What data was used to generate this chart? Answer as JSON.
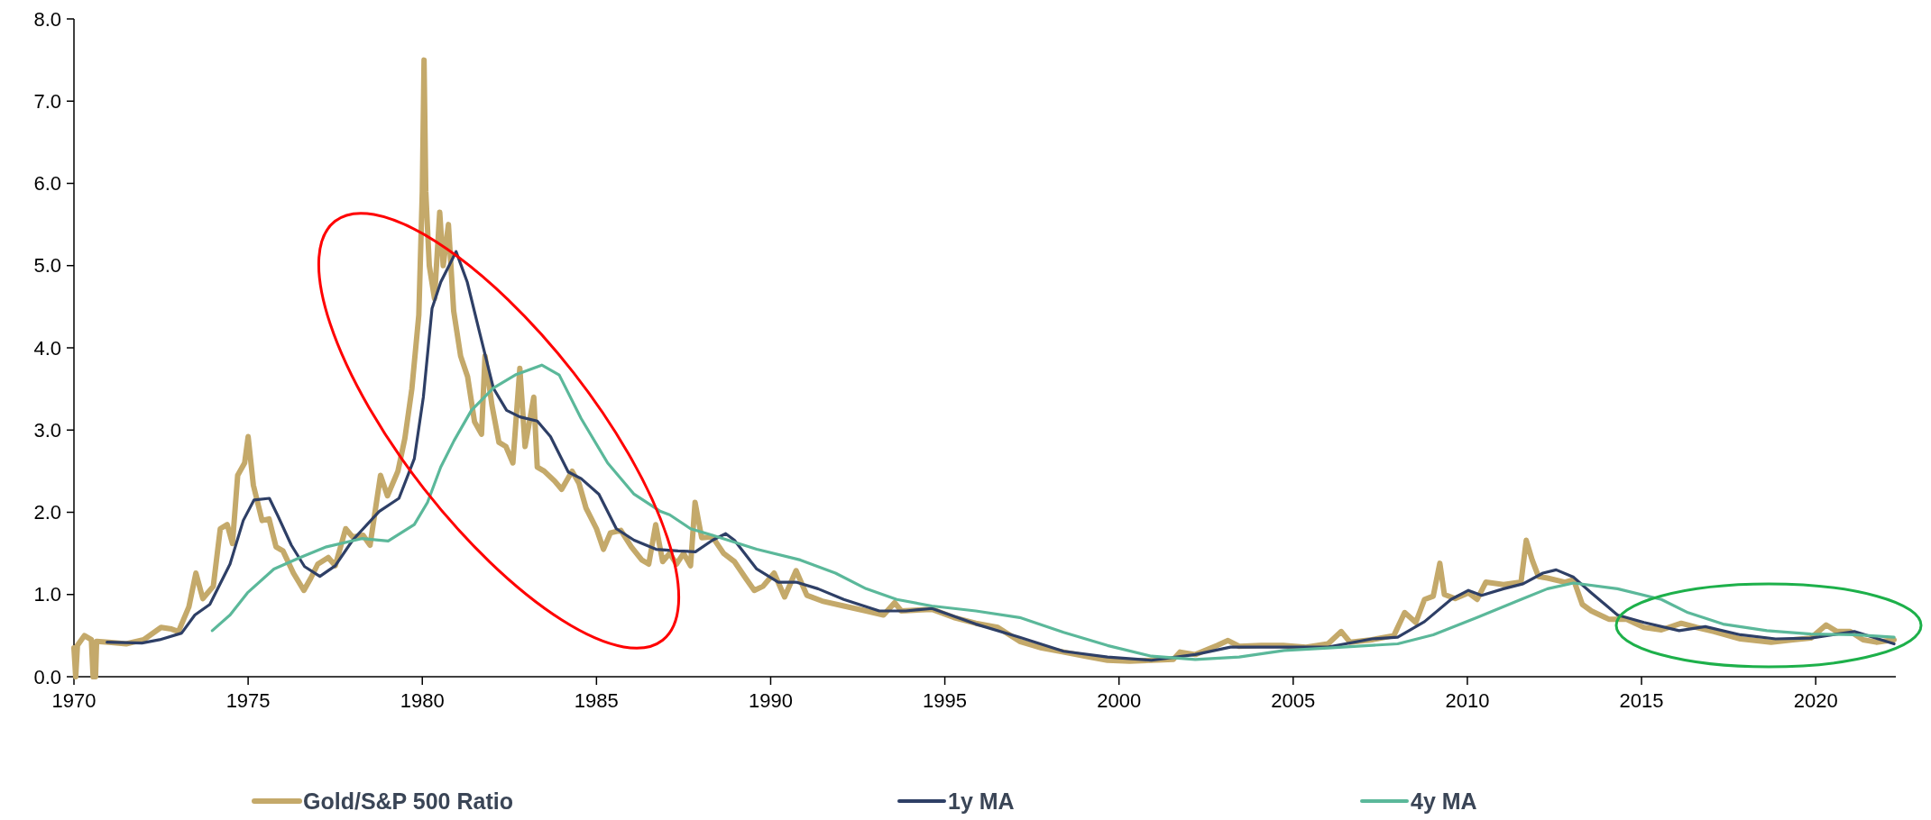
{
  "chart_data": {
    "type": "line",
    "xlim": [
      1970,
      2022.3
    ],
    "xticks": [
      1970,
      1975,
      1980,
      1985,
      1990,
      1995,
      2000,
      2005,
      2010,
      2015,
      2020
    ],
    "ylim": [
      0,
      8
    ],
    "yticks": [
      {
        "value": 0,
        "label": "0.0"
      },
      {
        "value": 1,
        "label": "1.0"
      },
      {
        "value": 2,
        "label": "2.0"
      },
      {
        "value": 3,
        "label": "3.0"
      },
      {
        "value": 4,
        "label": "4.0"
      },
      {
        "value": 5,
        "label": "5.0"
      },
      {
        "value": 6,
        "label": "6.0"
      },
      {
        "value": 7,
        "label": "7.0"
      },
      {
        "value": 8,
        "label": "8.0"
      }
    ],
    "legend": "bottom",
    "series": [
      {
        "name": "Gold/S&P 500 Ratio",
        "color": "#c4a96a",
        "x": [
          1970.0,
          1970.05,
          1970.1,
          1970.3,
          1970.5,
          1970.55,
          1970.62,
          1970.65,
          1971.0,
          1971.5,
          1972.0,
          1972.5,
          1972.8,
          1973.0,
          1973.3,
          1973.5,
          1973.7,
          1974.0,
          1974.2,
          1974.4,
          1974.55,
          1974.7,
          1974.9,
          1975.0,
          1975.15,
          1975.4,
          1975.6,
          1975.8,
          1976.0,
          1976.3,
          1976.6,
          1976.8,
          1977.0,
          1977.3,
          1977.5,
          1977.8,
          1978.0,
          1978.3,
          1978.5,
          1978.8,
          1979.0,
          1979.3,
          1979.5,
          1979.7,
          1979.9,
          1980.0,
          1980.05,
          1980.1,
          1980.2,
          1980.35,
          1980.5,
          1980.6,
          1980.75,
          1980.9,
          1981.1,
          1981.3,
          1981.5,
          1981.7,
          1981.8,
          1982.0,
          1982.2,
          1982.4,
          1982.6,
          1982.8,
          1982.95,
          1983.2,
          1983.3,
          1983.5,
          1983.8,
          1984.0,
          1984.3,
          1984.5,
          1984.7,
          1985.0,
          1985.2,
          1985.4,
          1985.7,
          1986.0,
          1986.3,
          1986.5,
          1986.7,
          1986.9,
          1987.1,
          1987.3,
          1987.5,
          1987.7,
          1987.83,
          1988.02,
          1988.33,
          1988.65,
          1988.96,
          1989.28,
          1989.53,
          1989.78,
          1990.1,
          1990.4,
          1990.73,
          1991.04,
          1991.48,
          1992.1,
          1992.74,
          1993.24,
          1993.56,
          1993.75,
          1994.63,
          1995.26,
          1995.89,
          1996.52,
          1997.15,
          1997.78,
          1998.41,
          1999.04,
          1999.67,
          2000.3,
          2000.93,
          2001.56,
          2001.75,
          2002.19,
          2002.82,
          2003.13,
          2003.45,
          2004.08,
          2004.71,
          2005.37,
          2006.0,
          2006.38,
          2006.63,
          2007.26,
          2007.89,
          2008.2,
          2008.52,
          2008.77,
          2009.02,
          2009.21,
          2009.34,
          2009.65,
          2010.03,
          2010.28,
          2010.53,
          2011.04,
          2011.54,
          2011.69,
          2011.86,
          2012.04,
          2012.3,
          2012.8,
          2013.05,
          2013.3,
          2013.56,
          2014.06,
          2014.56,
          2015.07,
          2015.57,
          2016.14,
          2016.58,
          2017.08,
          2017.84,
          2018.72,
          2019.35,
          2019.86,
          2020.3,
          2020.61,
          2020.99,
          2021.36,
          2021.74,
          2022.25
        ],
        "values": [
          0.35,
          0.0,
          0.38,
          0.5,
          0.45,
          0.0,
          0.0,
          0.43,
          0.42,
          0.4,
          0.45,
          0.6,
          0.58,
          0.55,
          0.85,
          1.26,
          0.95,
          1.1,
          1.8,
          1.85,
          1.62,
          2.45,
          2.6,
          2.92,
          2.33,
          1.9,
          1.92,
          1.58,
          1.53,
          1.26,
          1.05,
          1.2,
          1.37,
          1.45,
          1.35,
          1.8,
          1.7,
          1.72,
          1.6,
          2.45,
          2.2,
          2.5,
          2.9,
          3.5,
          4.4,
          5.9,
          7.5,
          5.9,
          5.0,
          4.6,
          5.65,
          5.0,
          5.5,
          4.45,
          3.9,
          3.65,
          3.1,
          2.95,
          3.9,
          3.3,
          2.85,
          2.8,
          2.6,
          3.75,
          2.8,
          3.4,
          2.55,
          2.5,
          2.38,
          2.28,
          2.5,
          2.35,
          2.05,
          1.8,
          1.55,
          1.75,
          1.78,
          1.58,
          1.42,
          1.37,
          1.85,
          1.4,
          1.5,
          1.37,
          1.5,
          1.35,
          2.12,
          1.69,
          1.7,
          1.5,
          1.4,
          1.2,
          1.05,
          1.1,
          1.26,
          0.97,
          1.29,
          0.99,
          0.92,
          0.86,
          0.8,
          0.75,
          0.9,
          0.8,
          0.82,
          0.72,
          0.65,
          0.6,
          0.43,
          0.35,
          0.3,
          0.25,
          0.2,
          0.19,
          0.2,
          0.21,
          0.3,
          0.27,
          0.38,
          0.44,
          0.37,
          0.38,
          0.38,
          0.36,
          0.4,
          0.55,
          0.42,
          0.45,
          0.5,
          0.78,
          0.66,
          0.94,
          0.98,
          1.38,
          1.0,
          0.95,
          1.02,
          0.94,
          1.15,
          1.12,
          1.15,
          1.66,
          1.42,
          1.22,
          1.2,
          1.15,
          1.18,
          0.88,
          0.8,
          0.7,
          0.7,
          0.6,
          0.57,
          0.65,
          0.6,
          0.55,
          0.46,
          0.42,
          0.45,
          0.47,
          0.63,
          0.55,
          0.55,
          0.45,
          0.42,
          0.45
        ]
      },
      {
        "name": "1y MA",
        "color": "#2e3f66",
        "x": [
          1970.95,
          1971.95,
          1972.46,
          1973.09,
          1973.47,
          1973.9,
          1974.48,
          1974.86,
          1975.17,
          1975.61,
          1975.86,
          1976.24,
          1976.62,
          1977.06,
          1977.5,
          1978.0,
          1978.76,
          1979.33,
          1979.77,
          1980.03,
          1980.28,
          1980.53,
          1980.97,
          1981.29,
          1981.66,
          1982.04,
          1982.42,
          1982.8,
          1983.3,
          1983.68,
          1984.19,
          1984.56,
          1985.07,
          1985.57,
          1986.08,
          1986.71,
          1987.34,
          1987.84,
          1988.33,
          1988.71,
          1988.96,
          1989.6,
          1990.22,
          1990.73,
          1991.36,
          1992.1,
          1993.12,
          1993.88,
          1994.63,
          1995.89,
          1997.15,
          1998.41,
          1999.67,
          2000.93,
          2002.19,
          2003.2,
          2004.7,
          2006.0,
          2007.26,
          2008.0,
          2008.77,
          2009.53,
          2010.03,
          2010.41,
          2011.04,
          2011.6,
          2012.17,
          2012.55,
          2013.05,
          2013.56,
          2014.31,
          2015.07,
          2016.08,
          2016.83,
          2017.84,
          2018.85,
          2019.86,
          2021.11,
          2022.25
        ],
        "values": [
          0.42,
          0.41,
          0.45,
          0.53,
          0.75,
          0.88,
          1.37,
          1.9,
          2.15,
          2.17,
          1.95,
          1.6,
          1.34,
          1.22,
          1.35,
          1.66,
          2.01,
          2.17,
          2.65,
          3.4,
          4.48,
          4.8,
          5.17,
          4.8,
          4.16,
          3.51,
          3.24,
          3.16,
          3.11,
          2.92,
          2.49,
          2.41,
          2.22,
          1.8,
          1.66,
          1.55,
          1.53,
          1.52,
          1.66,
          1.74,
          1.66,
          1.31,
          1.15,
          1.15,
          1.07,
          0.94,
          0.8,
          0.8,
          0.83,
          0.64,
          0.48,
          0.31,
          0.24,
          0.2,
          0.27,
          0.36,
          0.36,
          0.36,
          0.46,
          0.48,
          0.67,
          0.94,
          1.05,
          0.99,
          1.07,
          1.13,
          1.26,
          1.3,
          1.21,
          1.02,
          0.75,
          0.66,
          0.56,
          0.61,
          0.51,
          0.46,
          0.47,
          0.55,
          0.4
        ]
      },
      {
        "name": "4y MA",
        "color": "#5bb89a",
        "x": [
          1973.97,
          1974.48,
          1974.98,
          1975.74,
          1976.49,
          1977.25,
          1978.26,
          1979.02,
          1979.77,
          1980.15,
          1980.53,
          1980.91,
          1981.41,
          1982.04,
          1982.67,
          1983.43,
          1983.93,
          1984.56,
          1985.32,
          1986.08,
          1986.84,
          1987.1,
          1987.7,
          1988.33,
          1989.6,
          1990.85,
          1991.86,
          1992.74,
          1993.62,
          1994.63,
          1995.89,
          1997.15,
          1998.41,
          1999.67,
          2000.93,
          2002.19,
          2003.45,
          2004.74,
          2006.0,
          2008.0,
          2009.02,
          2010.28,
          2011.54,
          2012.3,
          2013.05,
          2014.31,
          2015.57,
          2016.33,
          2017.34,
          2018.6,
          2019.86,
          2021.11,
          2022.25
        ],
        "values": [
          0.56,
          0.75,
          1.02,
          1.31,
          1.45,
          1.58,
          1.68,
          1.65,
          1.85,
          2.12,
          2.55,
          2.87,
          3.24,
          3.51,
          3.67,
          3.79,
          3.67,
          3.14,
          2.6,
          2.22,
          2.01,
          1.97,
          1.8,
          1.72,
          1.55,
          1.42,
          1.26,
          1.07,
          0.94,
          0.86,
          0.8,
          0.72,
          0.54,
          0.38,
          0.25,
          0.21,
          0.24,
          0.32,
          0.35,
          0.4,
          0.51,
          0.72,
          0.94,
          1.07,
          1.14,
          1.07,
          0.94,
          0.78,
          0.64,
          0.56,
          0.52,
          0.51,
          0.48
        ]
      }
    ]
  }
}
